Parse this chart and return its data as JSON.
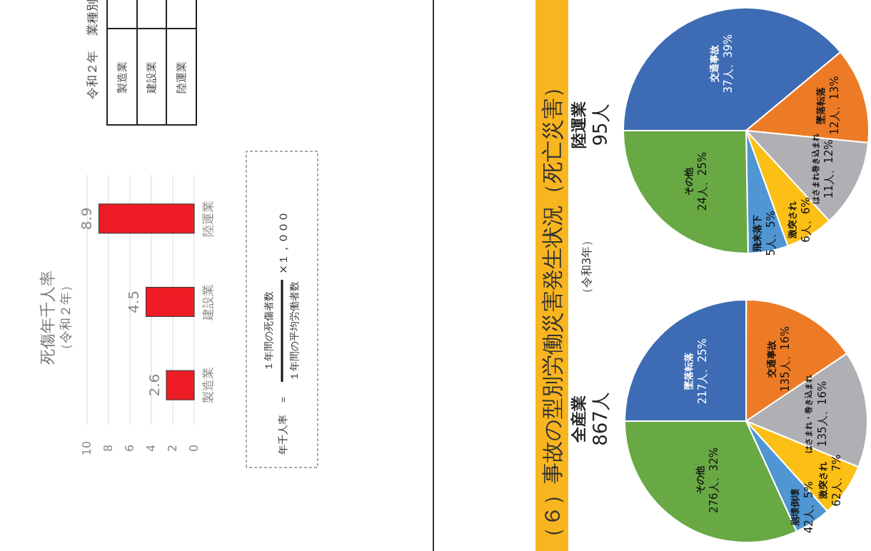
{
  "chart_data": [
    {
      "type": "bar",
      "title": "死傷年千人率",
      "subtitle": "（令和２年）",
      "categories": [
        "陸運業",
        "建設業",
        "製造業"
      ],
      "values": [
        8.9,
        4.5,
        2.6
      ],
      "color": "#ee1c24",
      "orientation": "horizontal",
      "xlim": [
        10,
        0
      ],
      "xticks": [
        10,
        8,
        6,
        4,
        2,
        0
      ],
      "grid": "x",
      "data_labels": true,
      "annotations": [
        "年千人率　＝",
        "１年間の死傷者数",
        "１年間の平均労働者数",
        "×１，０００",
        "令和２年",
        "業種別",
        "製造業",
        "建設業",
        "陸運業"
      ]
    },
    {
      "type": "pie",
      "title": "全産業",
      "subtitle": "867人",
      "categories": [
        "墜落転落",
        "交通事故",
        "はさまれ・巻き込まれ",
        "激突され",
        "崩壊倒壊",
        "その他"
      ],
      "values": [
        217,
        135,
        135,
        62,
        42,
        276
      ],
      "value_labels": [
        "217人、25%",
        "135人、16%",
        "135人、16%",
        "62人、7%",
        "42人、5%",
        "276人、32%"
      ],
      "colors": [
        "#3d6cb4",
        "#ed7b25",
        "#b0b0b4",
        "#fbbf16",
        "#4f96d2",
        "#68a944"
      ],
      "annotations": [
        "（６）事故の型別労働災害発生状況（死亡災害）",
        "（令和3年）"
      ]
    },
    {
      "type": "pie",
      "title": "陸運業",
      "subtitle": "95人",
      "categories": [
        "交通事故",
        "墜落転落",
        "はさまれ巻き込まれ",
        "激突され",
        "飛来落下",
        "その他"
      ],
      "values": [
        37,
        12,
        11,
        6,
        5,
        24
      ],
      "value_labels": [
        "37人、39%",
        "12人、13%",
        "11人、12%",
        "6人、6%",
        "5人、5%",
        "24人、25%"
      ],
      "colors": [
        "#3d6cb4",
        "#ed7b25",
        "#b0b0b4",
        "#fbbf16",
        "#4f96d2",
        "#68a944"
      ]
    }
  ]
}
